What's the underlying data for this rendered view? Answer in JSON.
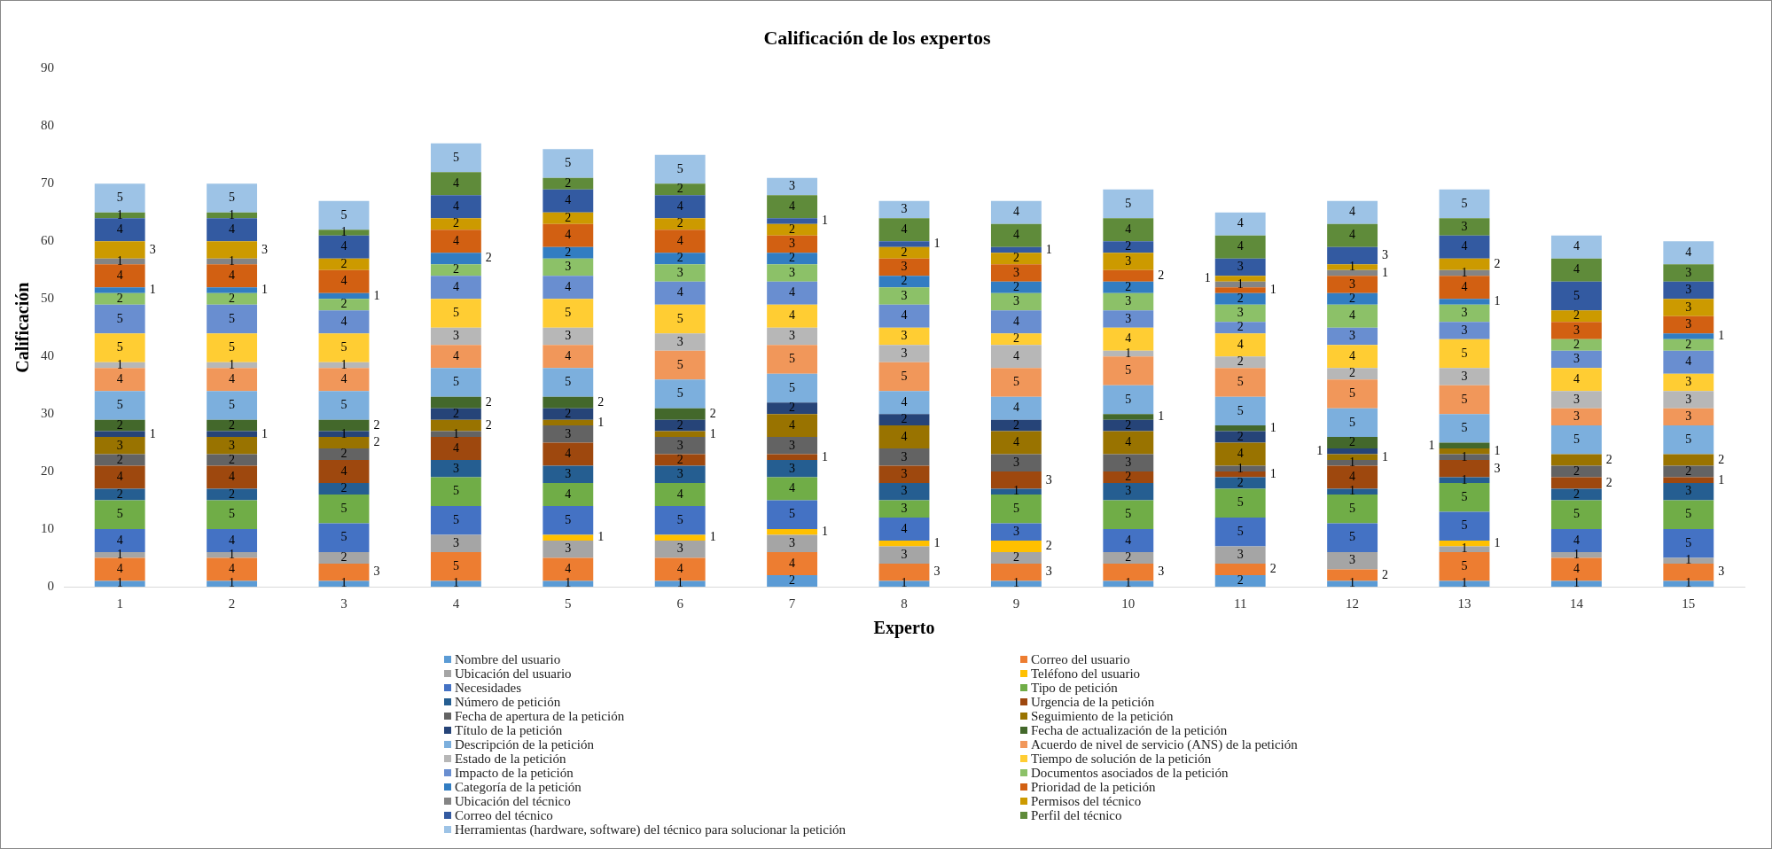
{
  "chart_data": {
    "type": "bar",
    "stacked": true,
    "title": "Calificación de los expertos",
    "xlabel": "Experto",
    "ylabel": "Calificación",
    "categories": [
      "1",
      "2",
      "3",
      "4",
      "5",
      "6",
      "7",
      "8",
      "9",
      "10",
      "11",
      "12",
      "13",
      "14",
      "15"
    ],
    "ylim": [
      0,
      90
    ],
    "yticks": [
      0,
      10,
      20,
      30,
      40,
      50,
      60,
      70,
      80,
      90
    ],
    "grid": false,
    "legend": "bottom",
    "series": [
      {
        "name": "Nombre del usuario",
        "color": "#5b9bd5",
        "values": [
          1,
          1,
          1,
          1,
          1,
          1,
          2,
          1,
          1,
          1,
          2,
          1,
          1,
          1,
          1
        ],
        "value_labels": [
          "1",
          "1",
          "1",
          "1",
          "1",
          "1",
          "2",
          "1",
          "1",
          "1",
          "2",
          "1",
          "1",
          "1",
          "1"
        ]
      },
      {
        "name": "Correo del usuario",
        "color": "#ed7d31",
        "values": [
          4,
          4,
          3,
          5,
          4,
          4,
          4,
          3,
          3,
          3,
          2,
          2,
          5,
          4,
          3
        ],
        "value_labels": [
          "4",
          "4",
          "3",
          "5",
          "4",
          "4",
          "4",
          "3",
          "3",
          "3",
          "2",
          "2",
          "5",
          "4",
          "3"
        ]
      },
      {
        "name": "Ubicación del usuario",
        "color": "#a5a5a5",
        "values": [
          1,
          1,
          2,
          3,
          3,
          3,
          3,
          3,
          2,
          2,
          3,
          3,
          1,
          1,
          1
        ],
        "value_labels": [
          "1",
          "1",
          "2",
          "3",
          "3",
          "3",
          "3",
          "3",
          "2",
          "2",
          "3",
          "3",
          "1",
          "1",
          "1"
        ]
      },
      {
        "name": "Teléfono del usuario",
        "color": "#ffc000",
        "values": [
          0,
          0,
          0,
          0,
          1,
          1,
          1,
          1,
          2,
          0,
          0,
          0,
          1,
          0,
          0
        ],
        "value_labels": [
          null,
          null,
          null,
          null,
          "1",
          "1",
          "1",
          "1",
          "2",
          null,
          null,
          null,
          "1",
          null,
          null
        ]
      },
      {
        "name": "Necesidades",
        "color": "#4472c4",
        "values": [
          4,
          4,
          5,
          5,
          5,
          5,
          5,
          4,
          3,
          4,
          5,
          5,
          5,
          4,
          5
        ],
        "value_labels": [
          "4",
          "4",
          "5",
          "5",
          "5",
          "5",
          "5",
          "4",
          "3",
          "4",
          "5",
          "5",
          "5",
          "4",
          "5"
        ]
      },
      {
        "name": "Tipo de petición",
        "color": "#70ad47",
        "values": [
          5,
          5,
          5,
          5,
          4,
          4,
          4,
          3,
          5,
          5,
          5,
          5,
          5,
          5,
          5
        ],
        "value_labels": [
          "5",
          "5",
          "5",
          "5",
          "4",
          "4",
          "4",
          "3",
          "5",
          "5",
          "5",
          "5",
          "5",
          "5",
          "5"
        ]
      },
      {
        "name": "Número de petición",
        "color": "#255e91",
        "values": [
          2,
          2,
          2,
          3,
          3,
          3,
          3,
          3,
          1,
          3,
          2,
          1,
          1,
          2,
          3
        ],
        "value_labels": [
          "2",
          "2",
          "2",
          "3",
          "3",
          "3",
          "3",
          "3",
          "1",
          "3",
          "2",
          "1",
          "1",
          "2",
          "3"
        ]
      },
      {
        "name": "Urgencia de la petición",
        "color": "#9e480e",
        "values": [
          4,
          4,
          4,
          4,
          4,
          2,
          1,
          3,
          3,
          2,
          1,
          4,
          3,
          2,
          1
        ],
        "value_labels": [
          "4",
          "4",
          "4",
          "4",
          "4",
          "2",
          "1",
          "3",
          "3",
          "2",
          "1",
          "4",
          "3",
          "2",
          "1"
        ]
      },
      {
        "name": "Fecha de apertura de la petición",
        "color": "#636363",
        "values": [
          2,
          2,
          2,
          1,
          3,
          3,
          3,
          3,
          3,
          3,
          1,
          1,
          1,
          2,
          2
        ],
        "value_labels": [
          "2",
          "2",
          "2",
          "1",
          "3",
          "3",
          "3",
          "3",
          "3",
          "3",
          "1",
          "1",
          "1",
          "2",
          "2"
        ]
      },
      {
        "name": "Seguimiento de la petición",
        "color": "#997300",
        "values": [
          3,
          3,
          2,
          2,
          1,
          1,
          4,
          4,
          4,
          4,
          4,
          1,
          1,
          2,
          2
        ],
        "value_labels": [
          "3",
          "3",
          "2",
          "2",
          "1",
          "1",
          "4",
          "4",
          "4",
          "4",
          "4",
          "1",
          "1",
          "2",
          "2"
        ]
      },
      {
        "name": "Título de la petición",
        "color": "#264478",
        "values": [
          1,
          1,
          1,
          2,
          2,
          2,
          2,
          2,
          2,
          2,
          2,
          1,
          0,
          0,
          0
        ],
        "value_labels": [
          "1",
          "1",
          "1",
          "2",
          "2",
          "2",
          "2",
          "2",
          "2",
          "2",
          "2",
          "1",
          null,
          null,
          null
        ]
      },
      {
        "name": "Fecha de actualización de la petición",
        "color": "#43682b",
        "values": [
          2,
          2,
          2,
          2,
          2,
          2,
          0,
          0,
          0,
          1,
          1,
          2,
          1,
          0,
          0
        ],
        "value_labels": [
          "2",
          "2",
          "2",
          "2",
          "2",
          "2",
          null,
          null,
          null,
          "1",
          "1",
          "2",
          "1",
          null,
          null
        ]
      },
      {
        "name": "Descripción de la petición",
        "color": "#7cafdd",
        "values": [
          5,
          5,
          5,
          5,
          5,
          5,
          5,
          4,
          4,
          5,
          5,
          5,
          5,
          5,
          5
        ],
        "value_labels": [
          "5",
          "5",
          "5",
          "5",
          "5",
          "5",
          "5",
          "4",
          "4",
          "5",
          "5",
          "5",
          "5",
          "5",
          "5"
        ]
      },
      {
        "name": "Acuerdo de nivel de servicio (ANS) de la petición",
        "color": "#f1975a",
        "values": [
          4,
          4,
          4,
          4,
          4,
          5,
          5,
          5,
          5,
          5,
          5,
          5,
          5,
          3,
          3
        ],
        "value_labels": [
          "4",
          "4",
          "4",
          "4",
          "4",
          "5",
          "5",
          "5",
          "5",
          "5",
          "5",
          "5",
          "5",
          "3",
          "3"
        ]
      },
      {
        "name": "Estado de la petición",
        "color": "#b7b7b7",
        "values": [
          1,
          1,
          1,
          3,
          3,
          3,
          3,
          3,
          4,
          1,
          2,
          2,
          3,
          3,
          3
        ],
        "value_labels": [
          "1",
          "1",
          "1",
          "3",
          "3",
          "3",
          "3",
          "3",
          "4",
          "1",
          "2",
          "2",
          "3",
          "3",
          "3"
        ]
      },
      {
        "name": "Tiempo de solución de la petición",
        "color": "#ffcd33",
        "values": [
          5,
          5,
          5,
          5,
          5,
          5,
          4,
          3,
          2,
          4,
          4,
          4,
          5,
          4,
          3
        ],
        "value_labels": [
          "5",
          "5",
          "5",
          "5",
          "5",
          "5",
          "4",
          "3",
          "2",
          "4",
          "4",
          "4",
          "5",
          "4",
          "3"
        ]
      },
      {
        "name": "Impacto de la petición",
        "color": "#698ed0",
        "values": [
          5,
          5,
          4,
          4,
          4,
          4,
          4,
          4,
          4,
          3,
          2,
          3,
          3,
          3,
          4
        ],
        "value_labels": [
          "5",
          "5",
          "4",
          "4",
          "4",
          "4",
          "4",
          "4",
          "4",
          "3",
          "2",
          "3",
          "3",
          "3",
          "4"
        ]
      },
      {
        "name": "Documentos asociados de la petición",
        "color": "#8cc168",
        "values": [
          2,
          2,
          2,
          2,
          3,
          3,
          3,
          3,
          3,
          3,
          3,
          4,
          3,
          2,
          2
        ],
        "value_labels": [
          "2",
          "2",
          "2",
          "2",
          "3",
          "3",
          "3",
          "3",
          "3",
          "3",
          "3",
          "4",
          "3",
          "2",
          "2"
        ]
      },
      {
        "name": "Categoría de la petición",
        "color": "#327dc2",
        "values": [
          1,
          1,
          1,
          2,
          2,
          2,
          2,
          2,
          2,
          2,
          2,
          2,
          1,
          0,
          1
        ],
        "value_labels": [
          "1",
          "1",
          "1",
          "2",
          "2",
          "2",
          "2",
          "2",
          "2",
          "2",
          "2",
          "2",
          "1",
          null,
          "1"
        ]
      },
      {
        "name": "Prioridad de la petición",
        "color": "#d26012",
        "values": [
          4,
          4,
          4,
          4,
          4,
          4,
          3,
          3,
          3,
          2,
          1,
          3,
          4,
          3,
          3
        ],
        "value_labels": [
          "4",
          "4",
          "4",
          "4",
          "4",
          "4",
          "3",
          "3",
          "3",
          "2",
          "1",
          "3",
          "4",
          "3",
          "3"
        ]
      },
      {
        "name": "Ubicación del técnico",
        "color": "#848484",
        "values": [
          1,
          1,
          0,
          0,
          0,
          0,
          0,
          0,
          0,
          0,
          1,
          1,
          1,
          0,
          0
        ],
        "value_labels": [
          "1",
          "1",
          null,
          null,
          null,
          null,
          null,
          null,
          null,
          null,
          "1",
          "1",
          "1",
          null,
          null
        ]
      },
      {
        "name": "Permisos del técnico",
        "color": "#cc9a00",
        "values": [
          3,
          3,
          2,
          2,
          2,
          2,
          2,
          2,
          2,
          3,
          1,
          1,
          2,
          2,
          3
        ],
        "value_labels": [
          "3",
          "3",
          "2",
          "2",
          "2",
          "2",
          "2",
          "2",
          "2",
          "3",
          "1",
          "1",
          "2",
          "2",
          "3"
        ]
      },
      {
        "name": "Correo del técnico",
        "color": "#335aa1",
        "values": [
          4,
          4,
          4,
          4,
          4,
          4,
          1,
          1,
          1,
          2,
          3,
          3,
          4,
          5,
          3
        ],
        "value_labels": [
          "4",
          "4",
          "4",
          "4",
          "4",
          "4",
          "1",
          "1",
          "1",
          "2",
          "3",
          "3",
          "4",
          "5",
          "3"
        ]
      },
      {
        "name": "Perfil del técnico",
        "color": "#5f8b3a",
        "values": [
          1,
          1,
          1,
          4,
          2,
          2,
          4,
          4,
          4,
          4,
          4,
          4,
          3,
          4,
          3
        ],
        "value_labels": [
          "1",
          "1",
          "1",
          "4",
          "2",
          "2",
          "4",
          "4",
          "4",
          "4",
          "4",
          "4",
          "3",
          "4",
          "3"
        ]
      },
      {
        "name": "Herramientas (hardware, software) del técnico para solucionar la petición",
        "color": "#9dc3e6",
        "values": [
          5,
          5,
          5,
          5,
          5,
          5,
          3,
          3,
          4,
          5,
          4,
          4,
          5,
          4,
          4
        ],
        "value_labels": [
          "5",
          "5",
          "5",
          "5",
          "5",
          "5",
          "3",
          "3",
          "4",
          "5",
          "4",
          "4",
          "5",
          "4",
          "4"
        ]
      }
    ]
  }
}
